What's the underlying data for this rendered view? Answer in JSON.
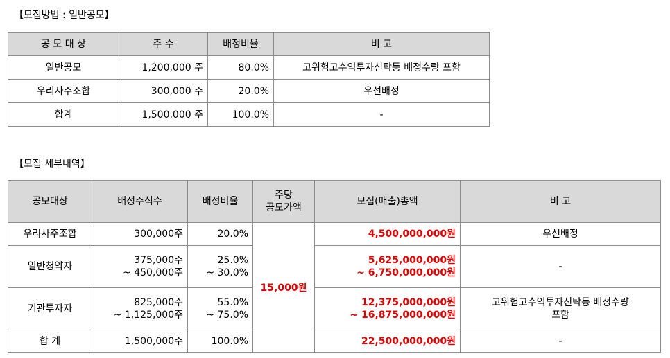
{
  "section1": {
    "title": "【모집방법 : 일반공모】",
    "headers": [
      "공 모 대 상",
      "주  수",
      "배정비율",
      "비 고"
    ],
    "rows": [
      {
        "target": "일반공모",
        "shares": "1,200,000 주",
        "ratio": "80.0%",
        "note": "고위험고수익투자신탁등 배정수량 포함"
      },
      {
        "target": "우리사주조합",
        "shares": "300,000 주",
        "ratio": "20.0%",
        "note": "우선배정"
      },
      {
        "target": "합계",
        "shares": "1,500,000 주",
        "ratio": "100.0%",
        "note": "-"
      }
    ]
  },
  "section2": {
    "title": "【모집 세부내역】",
    "headers": {
      "target": "공모대상",
      "shares": "배정주식수",
      "ratio": "배정비율",
      "price_line1": "주당",
      "price_line2": "공모가액",
      "amount": "모집(매출)총액",
      "note": "비 고"
    },
    "price": "15,000원",
    "rows": [
      {
        "target": "우리사주조합",
        "shares1": "300,000주",
        "shares2": "",
        "ratio1": "20.0%",
        "ratio2": "",
        "amount1": "4,500,000,000원",
        "amount2": "",
        "note1": "우선배정",
        "note2": ""
      },
      {
        "target": "일반청약자",
        "shares1": "375,000주",
        "shares2": "~ 450,000주",
        "ratio1": "25.0%",
        "ratio2": "~ 30.0%",
        "amount1": "5,625,000,000원",
        "amount2": "~ 6,750,000,000원",
        "note1": "-",
        "note2": ""
      },
      {
        "target": "기관투자자",
        "shares1": "825,000주",
        "shares2": "~ 1,125,000주",
        "ratio1": "55.0%",
        "ratio2": "~ 75.0%",
        "amount1": "12,375,000,000원",
        "amount2": "~ 16,875,000,000원",
        "note1": "고위험고수익투자신탁등 배정수량",
        "note2": "포함"
      },
      {
        "target": "합 계",
        "shares1": "1,500,000주",
        "shares2": "",
        "ratio1": "100.0%",
        "ratio2": "",
        "amount1": "22,500,000,000원",
        "amount2": "",
        "note1": "-",
        "note2": ""
      }
    ]
  },
  "colors": {
    "header_bg": "#d9d9d9",
    "border": "#8c8c8c",
    "amount_text": "#e00000"
  }
}
